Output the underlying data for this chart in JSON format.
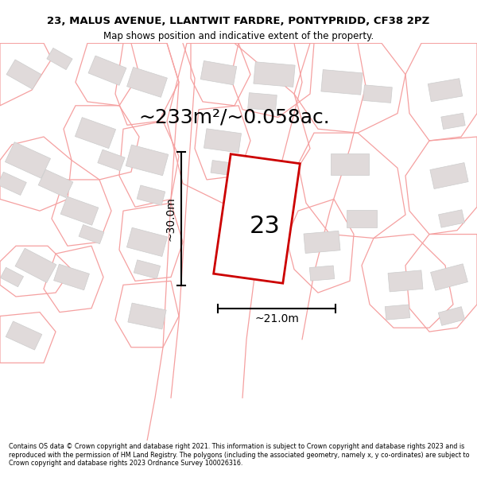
{
  "title_line1": "23, MALUS AVENUE, LLANTWIT FARDRE, PONTYPRIDD, CF38 2PZ",
  "title_line2": "Map shows position and indicative extent of the property.",
  "area_text": "~233m²/~0.058ac.",
  "number_label": "23",
  "dim_width": "~21.0m",
  "dim_height": "~30.0m",
  "footer_text": "Contains OS data © Crown copyright and database right 2021. This information is subject to Crown copyright and database rights 2023 and is reproduced with the permission of HM Land Registry. The polygons (including the associated geometry, namely x, y co-ordinates) are subject to Crown copyright and database rights 2023 Ordnance Survey 100026316.",
  "map_bg": "#ffffff",
  "plot_color": "#cc0000",
  "parcel_color": "#f5a0a0",
  "building_fill": "#e0dada",
  "building_edge": "#cccccc",
  "dim_color": "#000000",
  "title_fontsize": 9.5,
  "subtitle_fontsize": 8.5,
  "area_fontsize": 18,
  "label_fontsize": 22,
  "dim_fontsize": 10,
  "footer_fontsize": 5.8
}
